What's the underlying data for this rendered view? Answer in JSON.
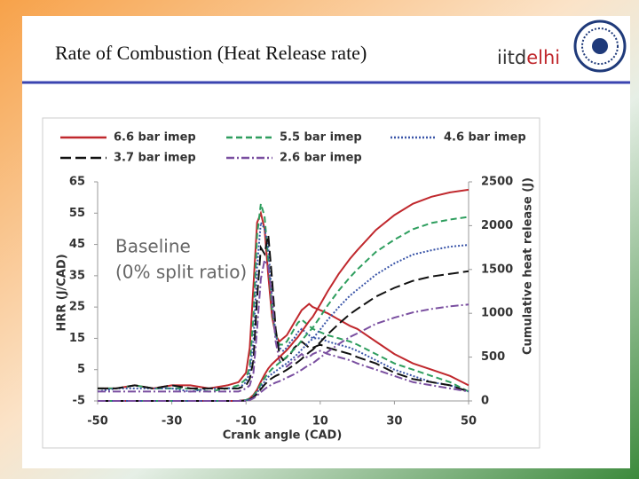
{
  "slide": {
    "title": "Rate of Combustion (Heat Release rate)",
    "logo": [
      "iitd",
      "elhi"
    ]
  },
  "chart_data": {
    "type": "line",
    "x_label": "Crank angle (CAD)",
    "y_label": "HRR (J/CAD)",
    "y2_label": "Cumulative heat release (J)",
    "annotations": [
      "Baseline",
      "(0% split ratio)"
    ],
    "x": [
      -50,
      -45,
      -40,
      -35,
      -30,
      -25,
      -20,
      -15,
      -12,
      -10,
      -9,
      -8,
      -7,
      -6,
      -5,
      -4,
      -3,
      -2,
      -1,
      0,
      1,
      2,
      3,
      4,
      5,
      6,
      7,
      8,
      10,
      12,
      15,
      18,
      20,
      25,
      30,
      35,
      40,
      45,
      50
    ],
    "xlim": [
      -50,
      50
    ],
    "xticks": [
      -50,
      -30,
      -10,
      10,
      30,
      50
    ],
    "ylim": [
      -5,
      65
    ],
    "yticks": [
      -5,
      5,
      15,
      25,
      35,
      45,
      55,
      65
    ],
    "y2lim": [
      0,
      2500
    ],
    "y2ticks": [
      0,
      500,
      1000,
      1500,
      2000,
      2500
    ],
    "series": [
      {
        "name": "6.6 bar imep",
        "color": "#c0282d",
        "style": "solid",
        "values": [
          -1,
          -1,
          0,
          -1,
          0,
          0,
          -1,
          0,
          1,
          4,
          12,
          32,
          52,
          55,
          50,
          35,
          22,
          16,
          14,
          15,
          16,
          18,
          20,
          22,
          24,
          25,
          26,
          25,
          24,
          23,
          21,
          19,
          18,
          14,
          10,
          7,
          5,
          3,
          0
        ]
      },
      {
        "name": "5.5 bar imep",
        "color": "#2e9e5e",
        "style": "dashed",
        "values": [
          -1,
          -1,
          0,
          -1,
          -1,
          -1,
          -2,
          -1,
          0,
          2,
          6,
          22,
          48,
          58,
          54,
          40,
          24,
          16,
          13,
          13,
          14,
          16,
          18,
          20,
          21,
          20,
          19,
          18,
          17,
          16,
          15,
          14,
          13,
          10,
          7,
          5,
          3,
          1,
          -2
        ]
      },
      {
        "name": "4.6 bar imep",
        "color": "#3a55a8",
        "style": "dotted",
        "values": [
          -2,
          -1,
          -1,
          -1,
          -1,
          -2,
          -1,
          -1,
          -1,
          1,
          4,
          14,
          38,
          52,
          50,
          44,
          28,
          16,
          12,
          11,
          12,
          14,
          15,
          17,
          18,
          17,
          16,
          15,
          15,
          14,
          13,
          12,
          11,
          8,
          5,
          3,
          1,
          0,
          -2
        ]
      },
      {
        "name": "3.7 bar imep",
        "color": "#111111",
        "style": "long-dashed",
        "values": [
          -1,
          -1,
          0,
          -1,
          0,
          -1,
          -1,
          -1,
          -1,
          0,
          2,
          8,
          28,
          44,
          42,
          48,
          34,
          18,
          10,
          8,
          9,
          10,
          12,
          13,
          14,
          13,
          12,
          12,
          13,
          12,
          11,
          10,
          9,
          7,
          4,
          2,
          1,
          0,
          -2
        ]
      },
      {
        "name": "2.6 bar imep",
        "color": "#7a4fa0",
        "style": "dash-dot",
        "values": [
          -2,
          -2,
          -2,
          -2,
          -2,
          -2,
          -2,
          -2,
          -2,
          -1,
          0,
          4,
          18,
          34,
          40,
          38,
          28,
          14,
          8,
          6,
          6,
          7,
          8,
          9,
          10,
          9,
          9,
          10,
          11,
          10,
          9,
          8,
          7,
          5,
          3,
          1,
          0,
          -1,
          -2
        ]
      },
      {
        "color": "#c0282d",
        "style": "solid",
        "axis": "y2",
        "values": [
          0,
          0,
          0,
          0,
          0,
          0,
          0,
          0,
          0,
          10,
          30,
          70,
          130,
          220,
          300,
          370,
          420,
          460,
          500,
          540,
          580,
          630,
          680,
          730,
          790,
          850,
          910,
          960,
          1100,
          1250,
          1450,
          1620,
          1720,
          1950,
          2120,
          2250,
          2330,
          2380,
          2410
        ]
      },
      {
        "color": "#2e9e5e",
        "style": "dashed",
        "axis": "y2",
        "values": [
          0,
          0,
          0,
          0,
          0,
          0,
          0,
          0,
          0,
          10,
          25,
          60,
          115,
          190,
          260,
          320,
          365,
          400,
          435,
          470,
          505,
          550,
          590,
          635,
          690,
          740,
          790,
          835,
          960,
          1090,
          1260,
          1410,
          1500,
          1700,
          1840,
          1960,
          2030,
          2070,
          2100
        ]
      },
      {
        "color": "#3a55a8",
        "style": "dotted",
        "axis": "y2",
        "values": [
          0,
          0,
          0,
          0,
          0,
          0,
          0,
          0,
          0,
          5,
          20,
          50,
          95,
          160,
          220,
          275,
          310,
          340,
          370,
          400,
          430,
          465,
          500,
          540,
          585,
          630,
          675,
          710,
          815,
          925,
          1070,
          1200,
          1270,
          1440,
          1570,
          1670,
          1720,
          1760,
          1780
        ]
      },
      {
        "color": "#111111",
        "style": "long-dashed",
        "axis": "y2",
        "values": [
          0,
          0,
          0,
          0,
          0,
          0,
          0,
          0,
          0,
          5,
          15,
          40,
          80,
          135,
          185,
          230,
          260,
          285,
          305,
          330,
          355,
          385,
          415,
          445,
          480,
          520,
          555,
          585,
          670,
          760,
          880,
          990,
          1050,
          1190,
          1290,
          1370,
          1420,
          1450,
          1480
        ]
      },
      {
        "color": "#7a4fa0",
        "style": "dash-dot",
        "axis": "y2",
        "values": [
          0,
          0,
          0,
          0,
          0,
          0,
          0,
          0,
          0,
          0,
          10,
          30,
          60,
          100,
          135,
          165,
          190,
          210,
          225,
          245,
          265,
          285,
          305,
          330,
          355,
          385,
          410,
          430,
          495,
          560,
          650,
          730,
          770,
          880,
          950,
          1010,
          1050,
          1080,
          1100
        ]
      }
    ]
  }
}
